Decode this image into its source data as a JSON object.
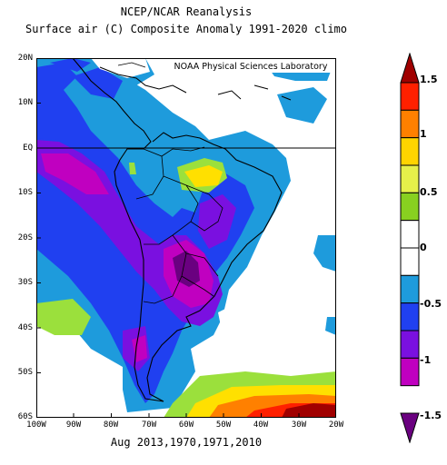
{
  "title": "NCEP/NCAR Reanalysis",
  "subtitle": "Surface air (C) Composite Anomaly 1991-2020 climo",
  "credit": "NOAA Physical Sciences Laboratory",
  "dates": "Aug 2013,1970,1971,2010",
  "lat_labels": [
    "20N",
    "10N",
    "EQ",
    "10S",
    "20S",
    "30S",
    "40S",
    "50S",
    "60S"
  ],
  "lon_labels": [
    "100W",
    "90W",
    "80W",
    "70W",
    "60W",
    "50W",
    "40W",
    "30W",
    "20W"
  ],
  "colorbar": {
    "labels": [
      "1.5",
      "1",
      "0.5",
      "0",
      "-0.5",
      "-1",
      "-1.5"
    ],
    "colors": [
      "#a00000",
      "#ff2000",
      "#ff8000",
      "#ffd400",
      "#e6f04a",
      "#88d020",
      "#ffffff",
      "#ffffff",
      "#1e9bdc",
      "#2040f0",
      "#7a10e0",
      "#c000c0",
      "#6a0080"
    ]
  },
  "legend": {
    "colors": {
      "dark_red": "#a00000",
      "red": "#ff2000",
      "orange": "#ff8000",
      "yellow": "#ffe000",
      "lime": "#9be03c",
      "light_blue": "#1e9bdc",
      "blue": "#2040f0",
      "violet": "#7a10e0",
      "magenta": "#c000c0",
      "dark_purple": "#6a0080"
    }
  }
}
